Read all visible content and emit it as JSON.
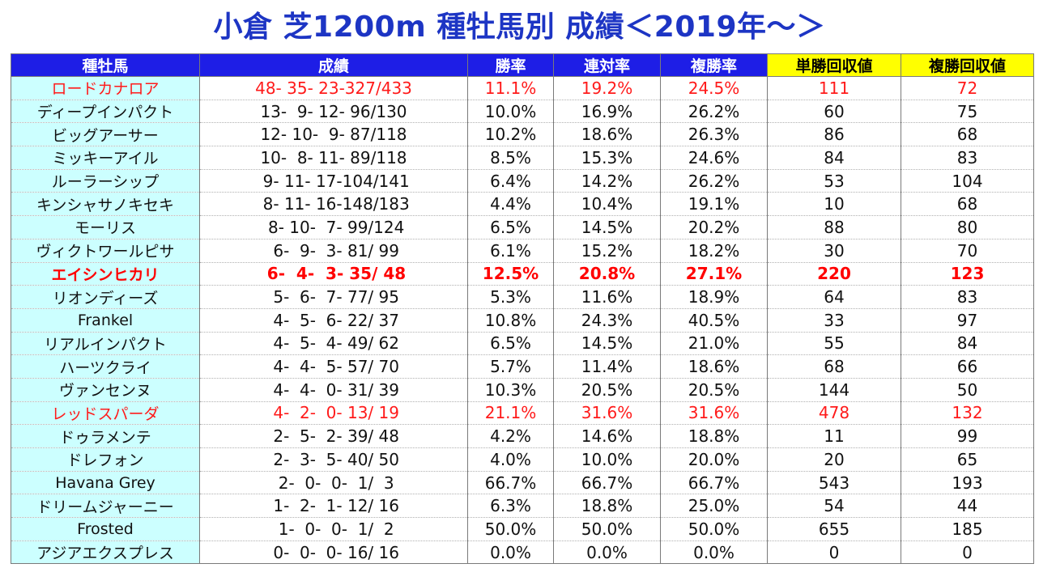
{
  "title": "小倉 芝1200m 種牡馬別 成績＜2019年～＞",
  "headers": [
    "種牡馬",
    "成績",
    "勝率",
    "連対率",
    "複勝率",
    "単勝回収値",
    "複勝回収値"
  ],
  "colors": {
    "title": "#1d35c4",
    "header_bg": "#1e1ee6",
    "highlight_header": "#ffff00",
    "name_bg": "#ccffff",
    "highlight_text": "#ff0000"
  },
  "rows": [
    {
      "name": "ロードカナロア",
      "record": "48- 35- 23-327/433",
      "win": "11.1%",
      "quinella": "19.2%",
      "show": "24.5%",
      "win_return": "111",
      "show_return": "72",
      "style": "red"
    },
    {
      "name": "ディープインパクト",
      "record": "13-  9- 12- 96/130",
      "win": "10.0%",
      "quinella": "16.9%",
      "show": "26.2%",
      "win_return": "60",
      "show_return": "75",
      "style": ""
    },
    {
      "name": "ビッグアーサー",
      "record": "12- 10-  9- 87/118",
      "win": "10.2%",
      "quinella": "18.6%",
      "show": "26.3%",
      "win_return": "86",
      "show_return": "68",
      "style": ""
    },
    {
      "name": "ミッキーアイル",
      "record": "10-  8- 11- 89/118",
      "win": "8.5%",
      "quinella": "15.3%",
      "show": "24.6%",
      "win_return": "84",
      "show_return": "83",
      "style": ""
    },
    {
      "name": "ルーラーシップ",
      "record": " 9- 11- 17-104/141",
      "win": "6.4%",
      "quinella": "14.2%",
      "show": "26.2%",
      "win_return": "53",
      "show_return": "104",
      "style": ""
    },
    {
      "name": "キンシャサノキセキ",
      "record": " 8- 11- 16-148/183",
      "win": "4.4%",
      "quinella": "10.4%",
      "show": "19.1%",
      "win_return": "10",
      "show_return": "68",
      "style": ""
    },
    {
      "name": "モーリス",
      "record": " 8- 10-  7- 99/124",
      "win": "6.5%",
      "quinella": "14.5%",
      "show": "20.2%",
      "win_return": "88",
      "show_return": "80",
      "style": ""
    },
    {
      "name": "ヴィクトワールピサ",
      "record": " 6-  9-  3- 81/ 99",
      "win": "6.1%",
      "quinella": "15.2%",
      "show": "18.2%",
      "win_return": "30",
      "show_return": "70",
      "style": ""
    },
    {
      "name": "エイシンヒカリ",
      "record": " 6-  4-  3- 35/ 48",
      "win": "12.5%",
      "quinella": "20.8%",
      "show": "27.1%",
      "win_return": "220",
      "show_return": "123",
      "style": "bold"
    },
    {
      "name": "リオンディーズ",
      "record": " 5-  6-  7- 77/ 95",
      "win": "5.3%",
      "quinella": "11.6%",
      "show": "18.9%",
      "win_return": "64",
      "show_return": "83",
      "style": ""
    },
    {
      "name": "Frankel",
      "record": " 4-  5-  6- 22/ 37",
      "win": "10.8%",
      "quinella": "24.3%",
      "show": "40.5%",
      "win_return": "33",
      "show_return": "97",
      "style": ""
    },
    {
      "name": "リアルインパクト",
      "record": " 4-  5-  4- 49/ 62",
      "win": "6.5%",
      "quinella": "14.5%",
      "show": "21.0%",
      "win_return": "55",
      "show_return": "84",
      "style": ""
    },
    {
      "name": "ハーツクライ",
      "record": " 4-  4-  5- 57/ 70",
      "win": "5.7%",
      "quinella": "11.4%",
      "show": "18.6%",
      "win_return": "68",
      "show_return": "66",
      "style": ""
    },
    {
      "name": "ヴァンセンヌ",
      "record": " 4-  4-  0- 31/ 39",
      "win": "10.3%",
      "quinella": "20.5%",
      "show": "20.5%",
      "win_return": "144",
      "show_return": "50",
      "style": ""
    },
    {
      "name": "レッドスパーダ",
      "record": " 4-  2-  0- 13/ 19",
      "win": "21.1%",
      "quinella": "31.6%",
      "show": "31.6%",
      "win_return": "478",
      "show_return": "132",
      "style": "red"
    },
    {
      "name": "ドゥラメンテ",
      "record": " 2-  5-  2- 39/ 48",
      "win": "4.2%",
      "quinella": "14.6%",
      "show": "18.8%",
      "win_return": "11",
      "show_return": "99",
      "style": ""
    },
    {
      "name": "ドレフォン",
      "record": " 2-  3-  5- 40/ 50",
      "win": "4.0%",
      "quinella": "10.0%",
      "show": "20.0%",
      "win_return": "20",
      "show_return": "65",
      "style": ""
    },
    {
      "name": "Havana Grey",
      "record": " 2-  0-  0-  1/  3",
      "win": "66.7%",
      "quinella": "66.7%",
      "show": "66.7%",
      "win_return": "543",
      "show_return": "193",
      "style": ""
    },
    {
      "name": "ドリームジャーニー",
      "record": " 1-  2-  1- 12/ 16",
      "win": "6.3%",
      "quinella": "18.8%",
      "show": "25.0%",
      "win_return": "54",
      "show_return": "44",
      "style": ""
    },
    {
      "name": "Frosted",
      "record": " 1-  0-  0-  1/  2",
      "win": "50.0%",
      "quinella": "50.0%",
      "show": "50.0%",
      "win_return": "655",
      "show_return": "185",
      "style": ""
    },
    {
      "name": "アジアエクスプレス",
      "record": " 0-  0-  0- 16/ 16",
      "win": "0.0%",
      "quinella": "0.0%",
      "show": "0.0%",
      "win_return": "0",
      "show_return": "0",
      "style": ""
    }
  ]
}
